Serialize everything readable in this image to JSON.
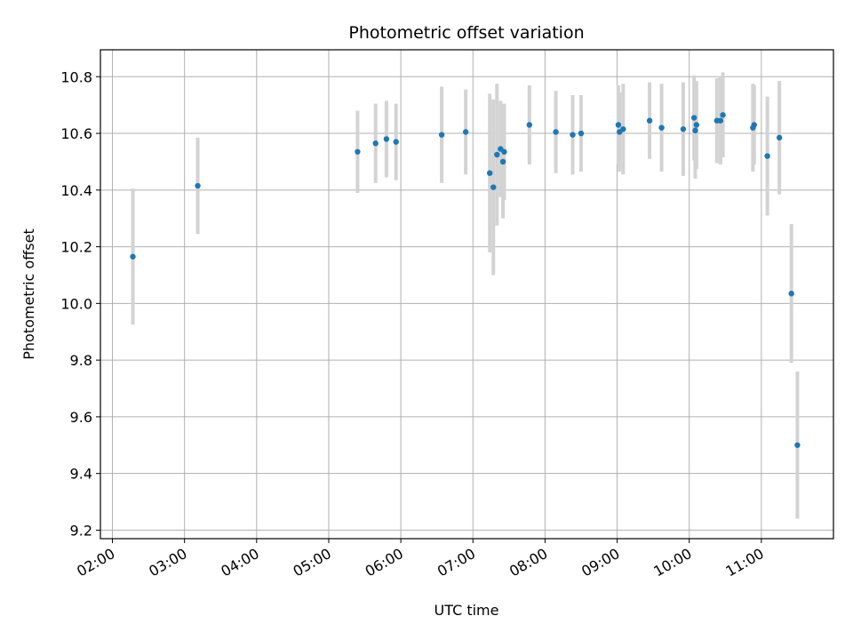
{
  "chart_data": {
    "type": "scatter",
    "title": "Photometric offset variation",
    "xlabel": "UTC time",
    "ylabel": "Photometric offset",
    "x_tick_labels": [
      "02:00",
      "03:00",
      "04:00",
      "05:00",
      "06:00",
      "07:00",
      "08:00",
      "09:00",
      "10:00",
      "11:00"
    ],
    "y_tick_labels": [
      "9.2",
      "9.4",
      "9.6",
      "9.8",
      "10.0",
      "10.2",
      "10.4",
      "10.6",
      "10.8"
    ],
    "y_ticks": [
      9.2,
      9.4,
      9.6,
      9.8,
      10.0,
      10.2,
      10.4,
      10.6,
      10.8
    ],
    "xlim": [
      "01:50",
      "12:00"
    ],
    "ylim": [
      9.17,
      10.895
    ],
    "grid": true,
    "colors": {
      "point": "#1f77b4",
      "errorbar": "#d3d3d3",
      "grid": "#b0b0b0"
    },
    "points": [
      {
        "x": "02:17",
        "y": 10.165,
        "err": 0.24
      },
      {
        "x": "03:11",
        "y": 10.415,
        "err": 0.17
      },
      {
        "x": "05:24",
        "y": 10.535,
        "err": 0.145
      },
      {
        "x": "05:39",
        "y": 10.565,
        "err": 0.14
      },
      {
        "x": "05:48",
        "y": 10.58,
        "err": 0.135
      },
      {
        "x": "05:56",
        "y": 10.57,
        "err": 0.135
      },
      {
        "x": "06:34",
        "y": 10.595,
        "err": 0.17
      },
      {
        "x": "06:54",
        "y": 10.605,
        "err": 0.15
      },
      {
        "x": "07:14",
        "y": 10.46,
        "err": 0.28
      },
      {
        "x": "07:17",
        "y": 10.41,
        "err": 0.31
      },
      {
        "x": "07:20",
        "y": 10.525,
        "err": 0.25
      },
      {
        "x": "07:23",
        "y": 10.545,
        "err": 0.17
      },
      {
        "x": "07:25",
        "y": 10.5,
        "err": 0.2
      },
      {
        "x": "07:26",
        "y": 10.535,
        "err": 0.17
      },
      {
        "x": "07:47",
        "y": 10.63,
        "err": 0.14
      },
      {
        "x": "08:09",
        "y": 10.605,
        "err": 0.145
      },
      {
        "x": "08:23",
        "y": 10.595,
        "err": 0.14
      },
      {
        "x": "08:30",
        "y": 10.6,
        "err": 0.135
      },
      {
        "x": "09:01",
        "y": 10.63,
        "err": 0.14
      },
      {
        "x": "09:02",
        "y": 10.605,
        "err": 0.14
      },
      {
        "x": "09:05",
        "y": 10.615,
        "err": 0.16
      },
      {
        "x": "09:27",
        "y": 10.645,
        "err": 0.135
      },
      {
        "x": "09:37",
        "y": 10.62,
        "err": 0.155
      },
      {
        "x": "09:55",
        "y": 10.615,
        "err": 0.165
      },
      {
        "x": "10:04",
        "y": 10.655,
        "err": 0.15
      },
      {
        "x": "10:05",
        "y": 10.61,
        "err": 0.17
      },
      {
        "x": "10:06",
        "y": 10.63,
        "err": 0.155
      },
      {
        "x": "10:23",
        "y": 10.645,
        "err": 0.15
      },
      {
        "x": "10:26",
        "y": 10.645,
        "err": 0.155
      },
      {
        "x": "10:28",
        "y": 10.665,
        "err": 0.15
      },
      {
        "x": "10:53",
        "y": 10.62,
        "err": 0.155
      },
      {
        "x": "10:54",
        "y": 10.63,
        "err": 0.14
      },
      {
        "x": "11:05",
        "y": 10.52,
        "err": 0.21
      },
      {
        "x": "11:15",
        "y": 10.585,
        "err": 0.2
      },
      {
        "x": "11:25",
        "y": 10.035,
        "err": 0.245
      },
      {
        "x": "11:30",
        "y": 9.5,
        "err": 0.26
      }
    ]
  }
}
